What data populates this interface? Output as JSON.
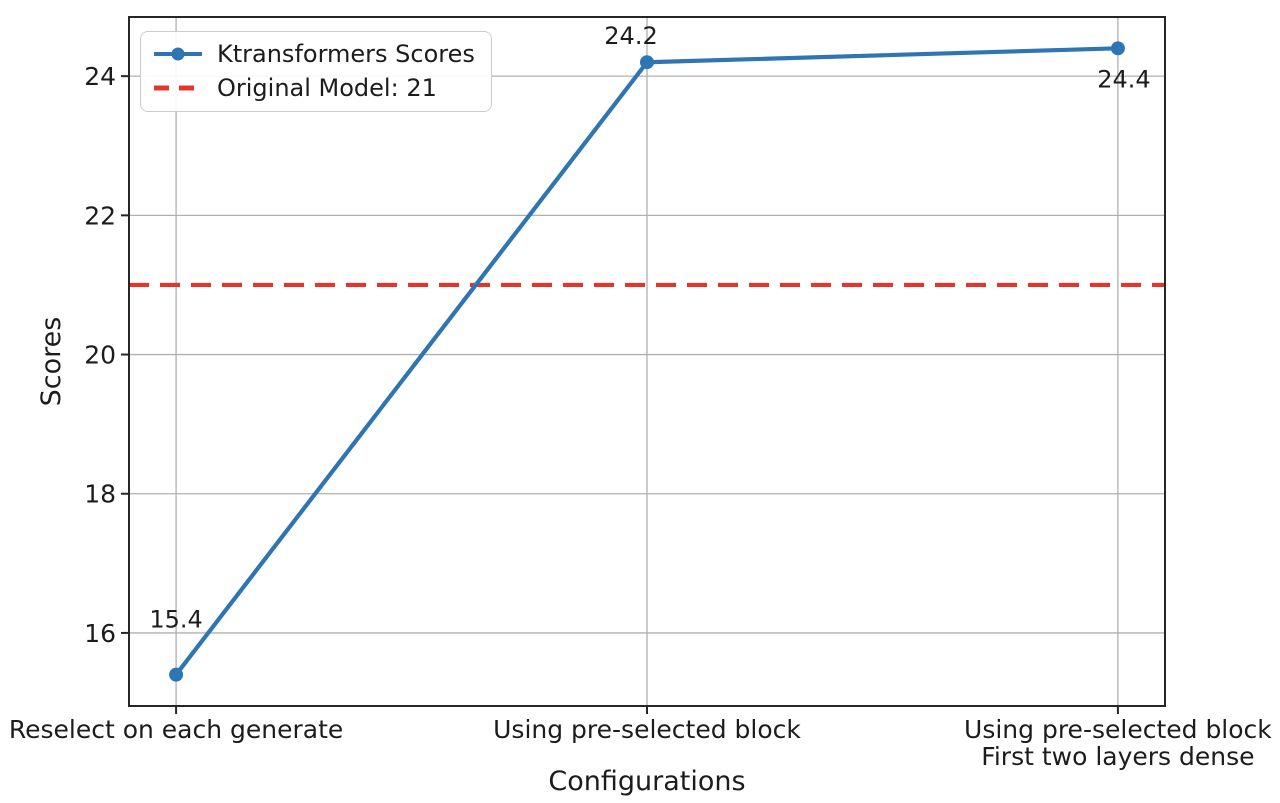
{
  "chart_data": {
    "type": "line",
    "title": "",
    "xlabel": "Configurations",
    "ylabel": "Scores",
    "categories": [
      "Reselect on each generate",
      "Using pre-selected block",
      "Using pre-selected block\nFirst two layers dense"
    ],
    "series": [
      {
        "name": "Ktransformers Scores",
        "values": [
          15.4,
          24.2,
          24.4
        ]
      }
    ],
    "point_labels": [
      "15.4",
      "24.2",
      "24.4"
    ],
    "reference_line": {
      "label": "Original Model: 21",
      "value": 21
    },
    "yticks": [
      16,
      18,
      20,
      22,
      24
    ],
    "ylim": [
      14.95,
      24.85
    ],
    "xlim": [
      -0.1,
      2.1
    ],
    "grid": true,
    "legend_position": "upper left",
    "legend": [
      "Ktransformers Scores",
      "Original Model: 21"
    ]
  },
  "colors": {
    "line": "#2e75b4",
    "reference": "#e53429",
    "grid": "#b0b0b0",
    "spine": "#262626",
    "text": "#1c1c1c",
    "legend_border": "#cccccc"
  }
}
